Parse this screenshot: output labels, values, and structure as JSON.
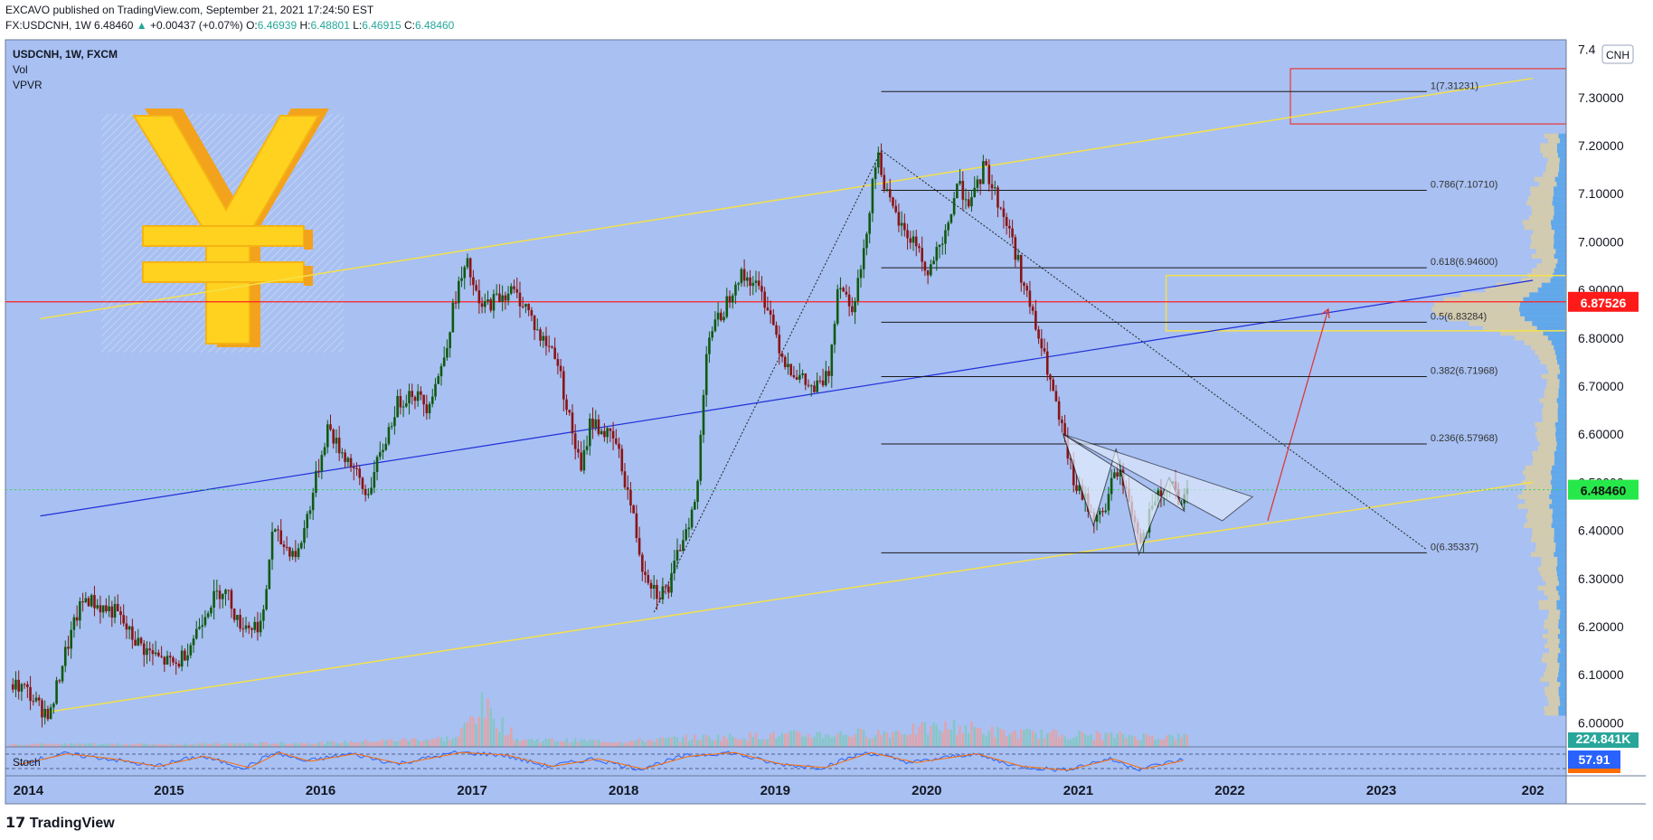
{
  "header": {
    "author": "EXCAVO",
    "published_text": "published on TradingView.com, September 21, 2021 17:24:50 EST",
    "symbol_line": "FX:USDCNH, 1W",
    "last": "6.48460",
    "change": "+0.00437 (+0.07%)",
    "change_arrow": "▲",
    "open_label": "O:",
    "open": "6.46939",
    "high_label": "H:",
    "high": "6.48801",
    "low_label": "L:",
    "low": "6.46915",
    "close_label": "C:",
    "close": "6.48460"
  },
  "legend": {
    "title": "USDCNH, 1W, FXCM",
    "vol": "Vol",
    "vpvr": "VPVR",
    "stoch": "Stoch"
  },
  "currency_badge": "CNH",
  "price_tags": {
    "red_line": "6.87526",
    "current": "6.48460",
    "volume": "224.841K",
    "stoch": "57.91"
  },
  "footer": {
    "logo_text": "TradingView"
  },
  "colors": {
    "chart_bg": "#a8c0f2",
    "up": "#0f5a10",
    "down": "#8a1414",
    "channel": "#f5e14a",
    "blue_line": "#1f2fd8",
    "red_line": "#ff2020",
    "tag_red": "#ff1a1a",
    "tag_green": "#27e84a",
    "tag_teal": "#28a69a",
    "tag_blue": "#2962ff"
  },
  "chart_data": {
    "type": "candlestick",
    "title": "USDCNH, 1W, FXCM",
    "ylim": [
      5.95,
      7.42
    ],
    "xlim": [
      2013.92,
      2024.22
    ],
    "y_ticks": [
      "6.00000",
      "6.10000",
      "6.20000",
      "6.30000",
      "6.40000",
      "6.50000",
      "6.60000",
      "6.70000",
      "6.80000",
      "6.90000",
      "7.00000",
      "7.10000",
      "7.20000",
      "7.30000",
      "7.4"
    ],
    "x_ticks": [
      "2014",
      "2015",
      "2016",
      "2017",
      "2018",
      "2019",
      "2020",
      "2021",
      "2022",
      "2023",
      "202"
    ],
    "price_path": [
      [
        2013.95,
        6.08
      ],
      [
        2014.05,
        6.07
      ],
      [
        2014.15,
        6.03
      ],
      [
        2014.22,
        6.02
      ],
      [
        2014.3,
        6.13
      ],
      [
        2014.4,
        6.23
      ],
      [
        2014.45,
        6.26
      ],
      [
        2014.55,
        6.24
      ],
      [
        2014.65,
        6.23
      ],
      [
        2014.75,
        6.18
      ],
      [
        2014.85,
        6.15
      ],
      [
        2014.95,
        6.13
      ],
      [
        2015.05,
        6.12
      ],
      [
        2015.15,
        6.17
      ],
      [
        2015.25,
        6.24
      ],
      [
        2015.35,
        6.28
      ],
      [
        2015.4,
        6.26
      ],
      [
        2015.45,
        6.21
      ],
      [
        2015.55,
        6.2
      ],
      [
        2015.62,
        6.21
      ],
      [
        2015.68,
        6.4
      ],
      [
        2015.75,
        6.37
      ],
      [
        2015.85,
        6.35
      ],
      [
        2015.95,
        6.48
      ],
      [
        2016.05,
        6.62
      ],
      [
        2016.1,
        6.58
      ],
      [
        2016.2,
        6.54
      ],
      [
        2016.3,
        6.47
      ],
      [
        2016.4,
        6.56
      ],
      [
        2016.5,
        6.66
      ],
      [
        2016.6,
        6.69
      ],
      [
        2016.7,
        6.66
      ],
      [
        2016.8,
        6.74
      ],
      [
        2016.9,
        6.9
      ],
      [
        2016.97,
        6.95
      ],
      [
        2017.05,
        6.86
      ],
      [
        2017.15,
        6.88
      ],
      [
        2017.25,
        6.9
      ],
      [
        2017.35,
        6.87
      ],
      [
        2017.45,
        6.8
      ],
      [
        2017.55,
        6.77
      ],
      [
        2017.65,
        6.62
      ],
      [
        2017.72,
        6.52
      ],
      [
        2017.78,
        6.63
      ],
      [
        2017.85,
        6.61
      ],
      [
        2017.95,
        6.58
      ],
      [
        2018.05,
        6.45
      ],
      [
        2018.12,
        6.33
      ],
      [
        2018.22,
        6.27
      ],
      [
        2018.3,
        6.28
      ],
      [
        2018.4,
        6.4
      ],
      [
        2018.48,
        6.46
      ],
      [
        2018.55,
        6.8
      ],
      [
        2018.65,
        6.85
      ],
      [
        2018.75,
        6.93
      ],
      [
        2018.85,
        6.92
      ],
      [
        2018.95,
        6.87
      ],
      [
        2019.05,
        6.76
      ],
      [
        2019.15,
        6.72
      ],
      [
        2019.25,
        6.69
      ],
      [
        2019.35,
        6.72
      ],
      [
        2019.42,
        6.93
      ],
      [
        2019.5,
        6.86
      ],
      [
        2019.58,
        6.96
      ],
      [
        2019.65,
        7.15
      ],
      [
        2019.68,
        7.18
      ],
      [
        2019.75,
        7.08
      ],
      [
        2019.85,
        7.02
      ],
      [
        2019.95,
        6.99
      ],
      [
        2020.0,
        6.92
      ],
      [
        2020.05,
        6.97
      ],
      [
        2020.1,
        6.98
      ],
      [
        2020.2,
        7.12
      ],
      [
        2020.3,
        7.08
      ],
      [
        2020.38,
        7.16
      ],
      [
        2020.45,
        7.1
      ],
      [
        2020.55,
        7.02
      ],
      [
        2020.65,
        6.9
      ],
      [
        2020.72,
        6.82
      ],
      [
        2020.8,
        6.73
      ],
      [
        2020.85,
        6.66
      ],
      [
        2020.92,
        6.57
      ],
      [
        2020.98,
        6.49
      ],
      [
        2021.05,
        6.46
      ],
      [
        2021.12,
        6.42
      ],
      [
        2021.18,
        6.45
      ],
      [
        2021.25,
        6.53
      ],
      [
        2021.3,
        6.5
      ],
      [
        2021.35,
        6.44
      ],
      [
        2021.42,
        6.38
      ],
      [
        2021.5,
        6.46
      ],
      [
        2021.58,
        6.48
      ],
      [
        2021.62,
        6.5
      ],
      [
        2021.68,
        6.44
      ],
      [
        2021.72,
        6.48
      ]
    ],
    "volume_path": [
      [
        2014.0,
        0.3
      ],
      [
        2015.0,
        0.3
      ],
      [
        2016.0,
        0.5
      ],
      [
        2016.9,
        1.2
      ],
      [
        2017.05,
        6.0
      ],
      [
        2017.15,
        4.5
      ],
      [
        2017.3,
        1.0
      ],
      [
        2018.0,
        0.7
      ],
      [
        2018.5,
        1.3
      ],
      [
        2019.0,
        1.6
      ],
      [
        2019.7,
        2.0
      ],
      [
        2020.2,
        3.0
      ],
      [
        2020.5,
        2.0
      ],
      [
        2021.0,
        1.7
      ],
      [
        2021.6,
        1.4
      ]
    ],
    "stoch_path": [
      [
        2014.0,
        40
      ],
      [
        2014.3,
        80
      ],
      [
        2014.6,
        60
      ],
      [
        2014.9,
        30
      ],
      [
        2015.2,
        70
      ],
      [
        2015.5,
        25
      ],
      [
        2015.7,
        85
      ],
      [
        2015.9,
        50
      ],
      [
        2016.2,
        80
      ],
      [
        2016.5,
        40
      ],
      [
        2016.9,
        85
      ],
      [
        2017.2,
        75
      ],
      [
        2017.5,
        30
      ],
      [
        2017.8,
        60
      ],
      [
        2018.1,
        20
      ],
      [
        2018.4,
        70
      ],
      [
        2018.7,
        85
      ],
      [
        2019.0,
        40
      ],
      [
        2019.3,
        25
      ],
      [
        2019.6,
        85
      ],
      [
        2019.9,
        45
      ],
      [
        2020.3,
        80
      ],
      [
        2020.6,
        30
      ],
      [
        2020.9,
        15
      ],
      [
        2021.2,
        60
      ],
      [
        2021.4,
        20
      ],
      [
        2021.7,
        57.91
      ]
    ],
    "fib_levels": [
      {
        "label": "1(7.31231)",
        "value": 7.31231
      },
      {
        "label": "0.786(7.10710)",
        "value": 7.1071
      },
      {
        "label": "0.618(6.94600)",
        "value": 6.946
      },
      {
        "label": "0.5(6.83284)",
        "value": 6.83284
      },
      {
        "label": "0.382(6.71968)",
        "value": 6.71968
      },
      {
        "label": "0.236(6.57968)",
        "value": 6.57968
      },
      {
        "label": "0(6.35337)",
        "value": 6.35337
      }
    ],
    "fib_x_range": [
      2019.7,
      2023.3
    ],
    "red_horizontal": 6.87526,
    "current_price": 6.4846,
    "channel_upper": [
      [
        2014.15,
        6.84
      ],
      [
        2024.0,
        7.34
      ]
    ],
    "channel_lower": [
      [
        2014.15,
        6.02
      ],
      [
        2024.0,
        6.5
      ]
    ],
    "blue_trend": [
      [
        2014.15,
        6.43
      ],
      [
        2024.0,
        6.92
      ]
    ],
    "dotted_trend_up": [
      [
        2018.2,
        6.23
      ],
      [
        2019.7,
        7.19
      ]
    ],
    "dotted_trend_down": [
      [
        2019.7,
        7.19
      ],
      [
        2023.3,
        6.36
      ]
    ],
    "forecast_arrow": [
      [
        2022.25,
        6.42
      ],
      [
        2022.65,
        6.86
      ]
    ],
    "target_box": {
      "x0": 2022.4,
      "x1": 2024.22,
      "y0": 7.245,
      "y1": 7.36
    },
    "zone_box": {
      "x0": 2021.58,
      "x1": 2024.22,
      "y0": 6.815,
      "y1": 6.93
    },
    "triangle": [
      [
        2020.9,
        6.6
      ],
      [
        2022.15,
        6.47
      ],
      [
        2021.95,
        6.42
      ]
    ],
    "pattern_points": [
      [
        2020.9,
        6.6
      ],
      [
        2021.1,
        6.41
      ],
      [
        2021.25,
        6.57
      ],
      [
        2021.4,
        6.35
      ],
      [
        2021.6,
        6.51
      ],
      [
        2021.7,
        6.44
      ]
    ]
  }
}
